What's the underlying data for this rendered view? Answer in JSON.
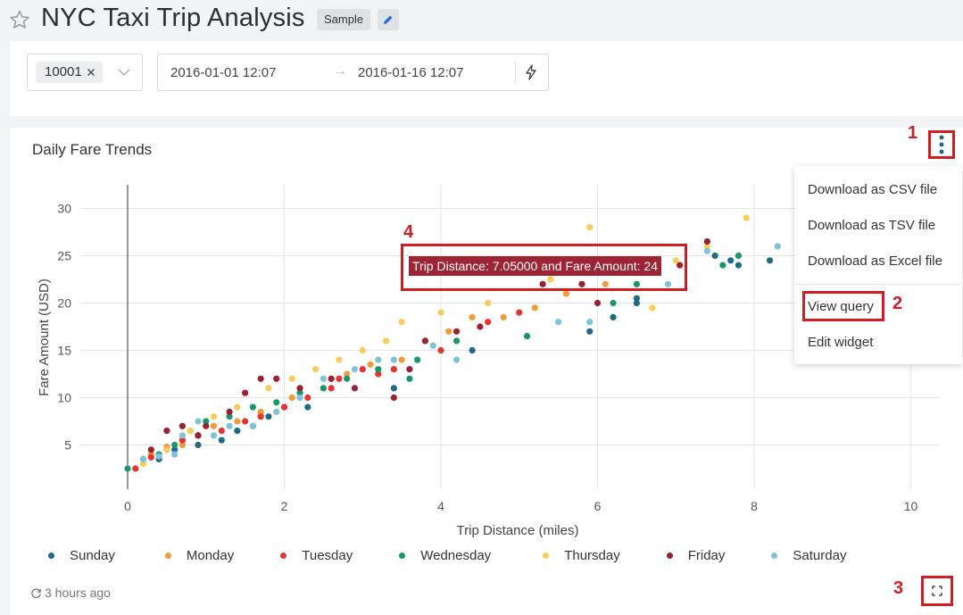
{
  "header": {
    "title": "NYC Taxi Trip Analysis",
    "badge": "Sample"
  },
  "filters": {
    "selected_tag": "10001",
    "date_start": "2016-01-01 12:07",
    "date_separator": "→",
    "date_end": "2016-01-16 12:07"
  },
  "widget": {
    "title": "Daily Fare Trends",
    "refreshed": "3 hours ago"
  },
  "menu": {
    "items": [
      "Download as CSV file",
      "Download as TSV file",
      "Download as Excel file",
      "View query",
      "Edit widget"
    ]
  },
  "annotations": [
    "1",
    "2",
    "3",
    "4"
  ],
  "tooltip": {
    "text": "Trip Distance: 7.05000 and Fare Amount: 24"
  },
  "chart_data": {
    "type": "scatter",
    "xlabel": "Trip Distance (miles)",
    "ylabel": "Fare Amount (USD)",
    "xlim": [
      0,
      10
    ],
    "ylim": [
      0,
      32
    ],
    "xticks": [
      0,
      2,
      4,
      6,
      8,
      10
    ],
    "yticks": [
      5,
      10,
      15,
      20,
      25,
      30
    ],
    "grid": true,
    "legend_position": "bottom",
    "series": [
      {
        "name": "Sunday",
        "color": "#1f6a85",
        "points": [
          [
            0.2,
            3.5
          ],
          [
            0.4,
            3.5
          ],
          [
            0.6,
            4.5
          ],
          [
            0.9,
            5
          ],
          [
            1.2,
            5.5
          ],
          [
            1.4,
            6.5
          ],
          [
            1.6,
            7
          ],
          [
            1.8,
            8
          ],
          [
            2.3,
            9
          ],
          [
            3.4,
            11
          ],
          [
            4.4,
            15
          ],
          [
            5.9,
            17
          ],
          [
            6.2,
            18.5
          ],
          [
            6.5,
            20
          ],
          [
            6.5,
            20.5
          ],
          [
            7.5,
            25
          ],
          [
            7.7,
            24.5
          ],
          [
            7.8,
            24
          ],
          [
            8.2,
            24.5
          ]
        ]
      },
      {
        "name": "Monday",
        "color": "#f29b38",
        "points": [
          [
            0.3,
            4
          ],
          [
            0.5,
            4.8
          ],
          [
            0.7,
            5
          ],
          [
            0.9,
            6
          ],
          [
            1.1,
            7
          ],
          [
            1.4,
            7.5
          ],
          [
            1.7,
            8.5
          ],
          [
            2.1,
            10
          ],
          [
            2.5,
            11
          ],
          [
            2.8,
            12.5
          ],
          [
            3.1,
            13.5
          ],
          [
            3.5,
            14
          ],
          [
            3.8,
            16
          ],
          [
            4.1,
            17
          ],
          [
            4.4,
            18.5
          ],
          [
            4.8,
            18.5
          ],
          [
            5.2,
            19.5
          ],
          [
            5.6,
            21
          ],
          [
            6.1,
            22
          ]
        ]
      },
      {
        "name": "Tuesday",
        "color": "#e8322d",
        "points": [
          [
            0.1,
            2.5
          ],
          [
            0.3,
            3.7
          ],
          [
            0.5,
            4.5
          ],
          [
            0.7,
            5.5
          ],
          [
            0.9,
            6
          ],
          [
            1.2,
            6.5
          ],
          [
            1.5,
            7.5
          ],
          [
            1.7,
            8
          ],
          [
            2.0,
            9
          ],
          [
            2.3,
            10
          ],
          [
            2.6,
            11
          ],
          [
            2.7,
            12
          ],
          [
            3.0,
            13
          ],
          [
            3.2,
            12.5
          ],
          [
            3.4,
            13
          ],
          [
            4.0,
            15
          ],
          [
            4.6,
            18
          ],
          [
            5.0,
            19
          ]
        ]
      },
      {
        "name": "Wednesday",
        "color": "#19966b",
        "points": [
          [
            0.0,
            2.5
          ],
          [
            0.4,
            4
          ],
          [
            0.6,
            5
          ],
          [
            0.8,
            6.5
          ],
          [
            1.0,
            7.5
          ],
          [
            1.3,
            8
          ],
          [
            1.6,
            9
          ],
          [
            1.9,
            9.5
          ],
          [
            2.2,
            10.5
          ],
          [
            2.5,
            11
          ],
          [
            2.8,
            12
          ],
          [
            3.2,
            13
          ],
          [
            3.6,
            12
          ],
          [
            3.7,
            14
          ],
          [
            4.2,
            16
          ],
          [
            5.1,
            16.5
          ],
          [
            6.2,
            20
          ],
          [
            6.5,
            22
          ],
          [
            7.6,
            24
          ],
          [
            7.8,
            25
          ]
        ]
      },
      {
        "name": "Thursday",
        "color": "#f7ce5b",
        "points": [
          [
            0.2,
            3
          ],
          [
            0.5,
            4.5
          ],
          [
            0.8,
            6.5
          ],
          [
            1.1,
            8
          ],
          [
            1.4,
            9
          ],
          [
            1.8,
            11
          ],
          [
            2.1,
            12
          ],
          [
            2.4,
            13
          ],
          [
            2.7,
            14
          ],
          [
            3.0,
            15
          ],
          [
            3.3,
            16
          ],
          [
            3.5,
            18
          ],
          [
            4.0,
            19
          ],
          [
            4.6,
            20
          ],
          [
            5.4,
            22.5
          ],
          [
            5.9,
            28
          ],
          [
            6.7,
            19.5
          ],
          [
            7.0,
            24.5
          ],
          [
            7.4,
            26
          ],
          [
            7.9,
            29
          ]
        ]
      },
      {
        "name": "Friday",
        "color": "#9a2032",
        "points": [
          [
            0.3,
            4.5
          ],
          [
            0.5,
            6.5
          ],
          [
            0.7,
            7
          ],
          [
            0.9,
            6
          ],
          [
            1.0,
            7
          ],
          [
            1.3,
            8.5
          ],
          [
            1.5,
            10.5
          ],
          [
            1.7,
            12
          ],
          [
            1.9,
            12
          ],
          [
            2.2,
            11
          ],
          [
            2.6,
            12
          ],
          [
            2.9,
            11
          ],
          [
            3.4,
            10
          ],
          [
            3.6,
            13
          ],
          [
            3.8,
            16
          ],
          [
            4.2,
            17
          ],
          [
            4.5,
            17.5
          ],
          [
            5.3,
            22
          ],
          [
            5.8,
            22
          ],
          [
            6.0,
            20
          ],
          [
            7.05,
            24
          ],
          [
            7.4,
            26.5
          ]
        ]
      },
      {
        "name": "Saturday",
        "color": "#7ec3d6",
        "points": [
          [
            0.2,
            3.5
          ],
          [
            0.4,
            3.8
          ],
          [
            0.6,
            4
          ],
          [
            0.7,
            6
          ],
          [
            0.9,
            7.5
          ],
          [
            1.1,
            6
          ],
          [
            1.3,
            7
          ],
          [
            1.6,
            7
          ],
          [
            1.9,
            8.5
          ],
          [
            2.2,
            10
          ],
          [
            2.5,
            12
          ],
          [
            2.9,
            13
          ],
          [
            3.2,
            14
          ],
          [
            3.4,
            14
          ],
          [
            3.9,
            15.5
          ],
          [
            4.2,
            14
          ],
          [
            5.5,
            18
          ],
          [
            5.9,
            18
          ],
          [
            6.9,
            22
          ],
          [
            7.4,
            25.5
          ],
          [
            8.3,
            26
          ]
        ]
      }
    ]
  }
}
